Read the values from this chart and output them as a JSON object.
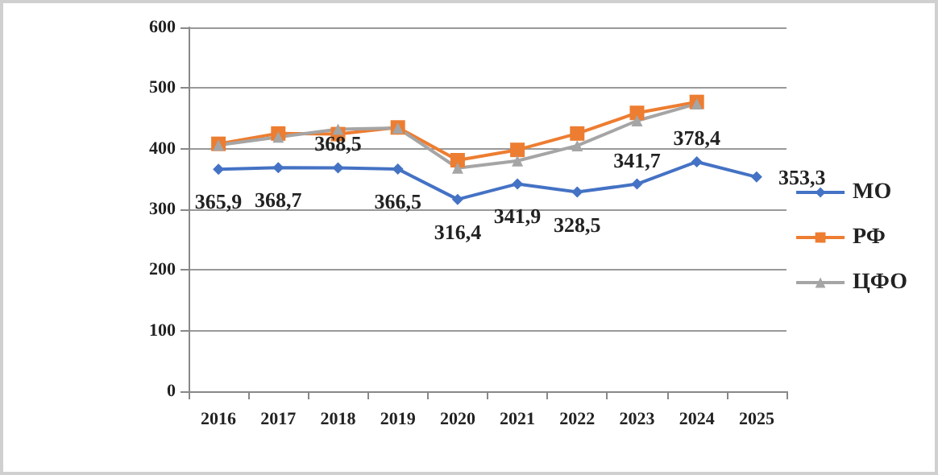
{
  "chart_data": {
    "type": "line",
    "categories": [
      "2016",
      "2017",
      "2018",
      "2019",
      "2020",
      "2021",
      "2022",
      "2023",
      "2024",
      "2025"
    ],
    "series": [
      {
        "name": "МО",
        "color": "#4472c4",
        "marker": "diamond",
        "values": [
          365.9,
          368.7,
          368.5,
          366.5,
          316.4,
          341.9,
          328.5,
          341.7,
          378.4,
          353.3
        ],
        "value_labels": [
          "365,9",
          "368,7",
          "368,5",
          "366,5",
          "316,4",
          "341,9",
          "328,5",
          "341,7",
          "378,4",
          "353,3"
        ]
      },
      {
        "name": "РФ",
        "color": "#ed7d31",
        "marker": "square",
        "values": [
          408,
          425,
          424,
          435,
          381,
          398,
          425,
          459,
          477,
          null
        ]
      },
      {
        "name": "ЦФО",
        "color": "#a5a5a5",
        "marker": "triangle",
        "values": [
          406,
          419,
          432,
          434,
          368,
          380,
          405,
          446,
          474,
          null
        ]
      }
    ],
    "ylim": [
      0,
      600
    ],
    "yticks": [
      0,
      100,
      200,
      300,
      400,
      500,
      600
    ],
    "grid": "y",
    "legend": "right"
  }
}
